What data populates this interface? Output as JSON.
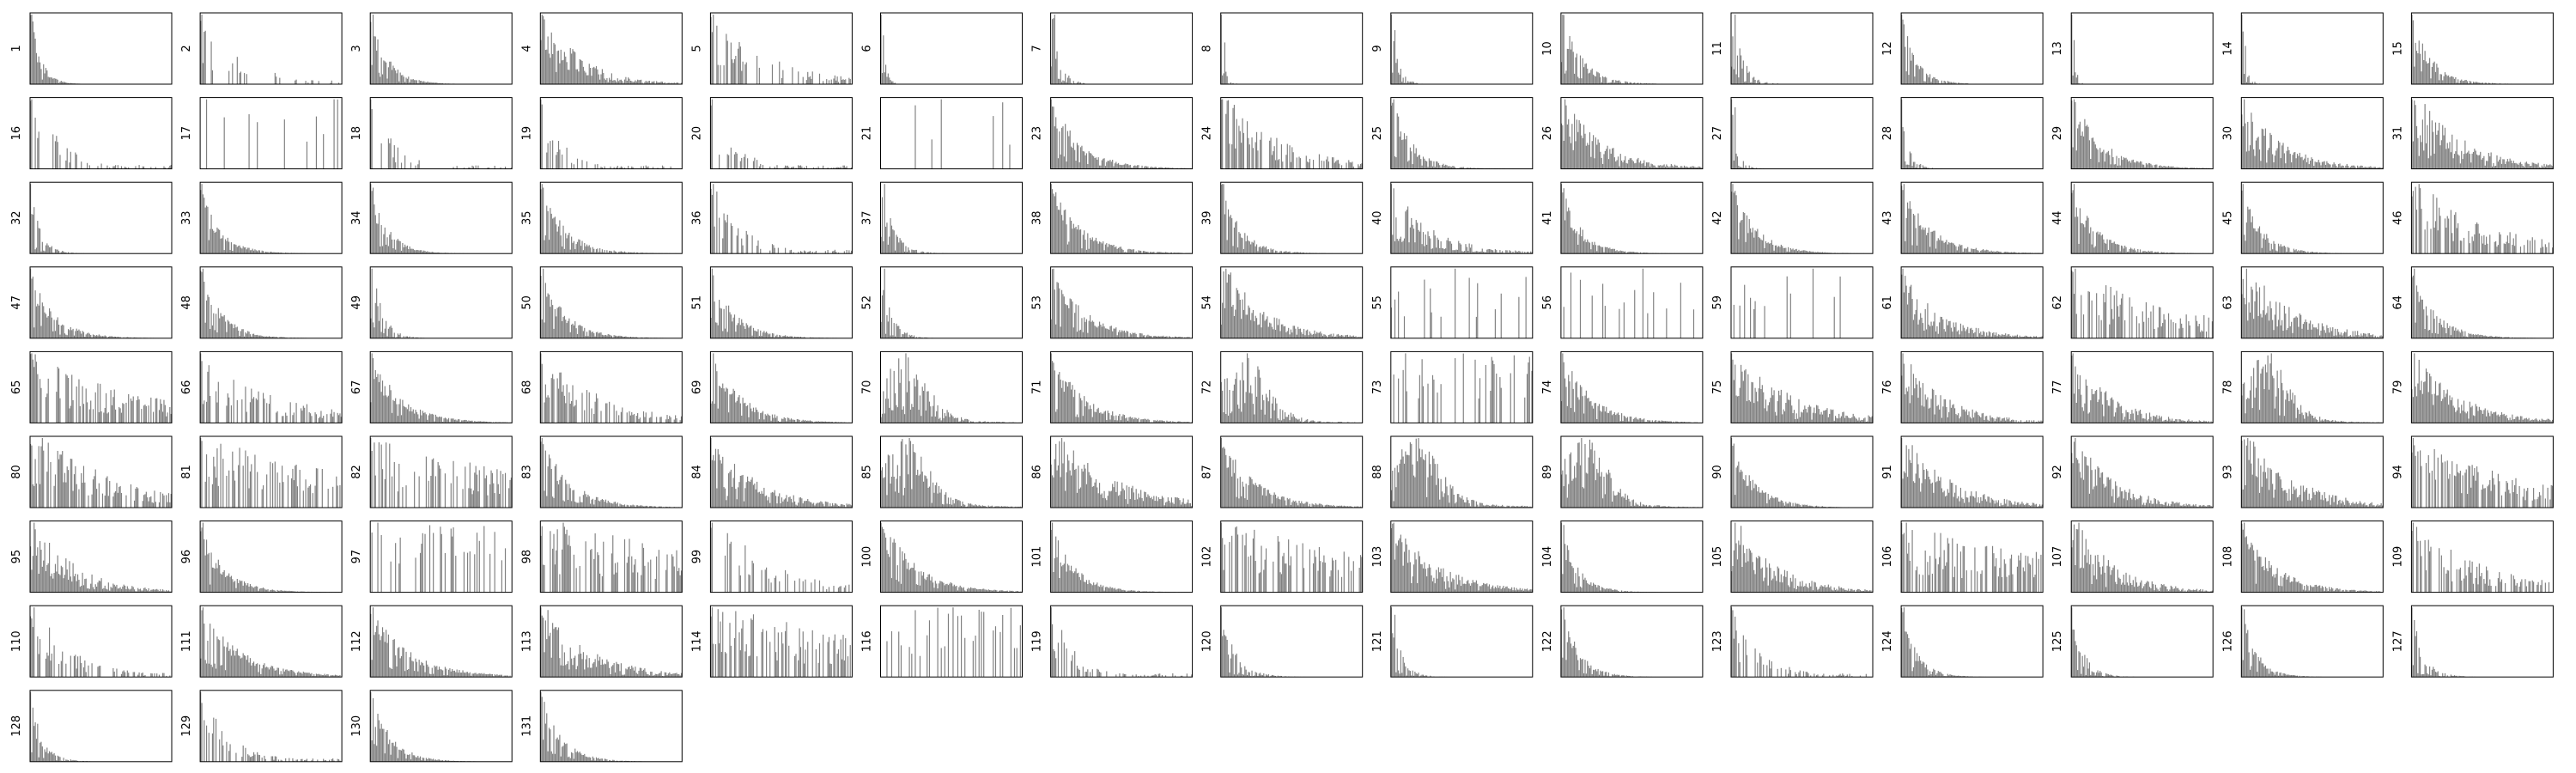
{
  "chart_data": {
    "type": "bar",
    "layout": "small-multiples-grid",
    "columns": 15,
    "bar_color": "#808080",
    "frame_color": "#000000",
    "axis_ticks": false,
    "grid": false,
    "legend": "none",
    "title": "",
    "xlabel": "",
    "ylabel": "",
    "panels": [
      {
        "label": "1",
        "shape": "decay",
        "density": 0.9,
        "decay": 0.12
      },
      {
        "label": "2",
        "shape": "sparse-spikes",
        "density": 0.25,
        "decay": 0.03
      },
      {
        "label": "3",
        "shape": "decay",
        "density": 0.85,
        "decay": 0.07
      },
      {
        "label": "4",
        "shape": "decay-broad",
        "density": 0.85,
        "decay": 0.035
      },
      {
        "label": "5",
        "shape": "sparse-spikes",
        "density": 0.45,
        "decay": 0.02
      },
      {
        "label": "6",
        "shape": "spike-decay",
        "density": 0.6,
        "decay": 0.3
      },
      {
        "label": "7",
        "shape": "spike-decay",
        "density": 0.6,
        "decay": 0.15
      },
      {
        "label": "8",
        "shape": "spike-decay",
        "density": 0.6,
        "decay": 0.35
      },
      {
        "label": "9",
        "shape": "spike-decay",
        "density": 0.7,
        "decay": 0.18
      },
      {
        "label": "10",
        "shape": "decay",
        "density": 0.85,
        "decay": 0.06
      },
      {
        "label": "11",
        "shape": "spike-decay",
        "density": 0.6,
        "decay": 0.12
      },
      {
        "label": "12",
        "shape": "decay",
        "density": 0.8,
        "decay": 0.08
      },
      {
        "label": "13",
        "shape": "spike-decay",
        "density": 0.4,
        "decay": 0.4
      },
      {
        "label": "14",
        "shape": "spike-decay",
        "density": 0.5,
        "decay": 0.3
      },
      {
        "label": "15",
        "shape": "decay",
        "density": 0.85,
        "decay": 0.06
      },
      {
        "label": "16",
        "shape": "sparse-spikes",
        "density": 0.35,
        "decay": 0.04
      },
      {
        "label": "17",
        "shape": "sparse-tall",
        "density": 0.06,
        "decay": 0.0
      },
      {
        "label": "18",
        "shape": "sparse-spikes",
        "density": 0.3,
        "decay": 0.05
      },
      {
        "label": "19",
        "shape": "sparse-spikes",
        "density": 0.3,
        "decay": 0.05
      },
      {
        "label": "20",
        "shape": "sparse-spikes",
        "density": 0.45,
        "decay": 0.05
      },
      {
        "label": "21",
        "shape": "sparse-tall",
        "density": 0.04,
        "decay": 0.0
      },
      {
        "label": "23",
        "shape": "decay",
        "density": 0.8,
        "decay": 0.04
      },
      {
        "label": "24",
        "shape": "sparse-spikes",
        "density": 0.6,
        "decay": 0.02
      },
      {
        "label": "25",
        "shape": "decay",
        "density": 0.8,
        "decay": 0.06
      },
      {
        "label": "26",
        "shape": "decay-broad",
        "density": 0.9,
        "decay": 0.03
      },
      {
        "label": "27",
        "shape": "spike-decay",
        "density": 0.6,
        "decay": 0.2
      },
      {
        "label": "28",
        "shape": "spike-decay",
        "density": 0.65,
        "decay": 0.16
      },
      {
        "label": "29",
        "shape": "decay",
        "density": 0.85,
        "decay": 0.04
      },
      {
        "label": "30",
        "shape": "decay-broad",
        "density": 0.85,
        "decay": 0.03
      },
      {
        "label": "31",
        "shape": "decay-broad",
        "density": 0.85,
        "decay": 0.025
      },
      {
        "label": "32",
        "shape": "spike-decay",
        "density": 0.7,
        "decay": 0.12
      },
      {
        "label": "33",
        "shape": "decay",
        "density": 0.85,
        "decay": 0.06
      },
      {
        "label": "34",
        "shape": "decay",
        "density": 0.85,
        "decay": 0.07
      },
      {
        "label": "35",
        "shape": "decay",
        "density": 0.85,
        "decay": 0.05
      },
      {
        "label": "36",
        "shape": "sparse-spikes",
        "density": 0.45,
        "decay": 0.04
      },
      {
        "label": "37",
        "shape": "spike-decay",
        "density": 0.7,
        "decay": 0.1
      },
      {
        "label": "38",
        "shape": "decay",
        "density": 0.85,
        "decay": 0.04
      },
      {
        "label": "39",
        "shape": "decay",
        "density": 0.85,
        "decay": 0.06
      },
      {
        "label": "40",
        "shape": "decay",
        "density": 0.6,
        "decay": 0.03
      },
      {
        "label": "41",
        "shape": "decay",
        "density": 0.85,
        "decay": 0.06
      },
      {
        "label": "42",
        "shape": "decay",
        "density": 0.85,
        "decay": 0.05
      },
      {
        "label": "43",
        "shape": "decay",
        "density": 0.85,
        "decay": 0.04
      },
      {
        "label": "44",
        "shape": "decay",
        "density": 0.85,
        "decay": 0.05
      },
      {
        "label": "45",
        "shape": "decay",
        "density": 0.85,
        "decay": 0.06
      },
      {
        "label": "46",
        "shape": "sparse-spikes",
        "density": 0.6,
        "decay": 0.015
      },
      {
        "label": "47",
        "shape": "decay",
        "density": 0.85,
        "decay": 0.05
      },
      {
        "label": "48",
        "shape": "decay",
        "density": 0.85,
        "decay": 0.06
      },
      {
        "label": "49",
        "shape": "spike-decay",
        "density": 0.7,
        "decay": 0.12
      },
      {
        "label": "50",
        "shape": "decay",
        "density": 0.85,
        "decay": 0.05
      },
      {
        "label": "51",
        "shape": "decay",
        "density": 0.85,
        "decay": 0.05
      },
      {
        "label": "52",
        "shape": "spike-decay",
        "density": 0.7,
        "decay": 0.12
      },
      {
        "label": "53",
        "shape": "decay",
        "density": 0.85,
        "decay": 0.035
      },
      {
        "label": "54",
        "shape": "decay-broad",
        "density": 0.85,
        "decay": 0.03
      },
      {
        "label": "55",
        "shape": "sparse-tall",
        "density": 0.12,
        "decay": 0.0
      },
      {
        "label": "56",
        "shape": "sparse-tall",
        "density": 0.1,
        "decay": 0.02
      },
      {
        "label": "59",
        "shape": "sparse-tall",
        "density": 0.12,
        "decay": 0.02
      },
      {
        "label": "61",
        "shape": "decay-broad",
        "density": 0.8,
        "decay": 0.03
      },
      {
        "label": "62",
        "shape": "sparse-spikes",
        "density": 0.6,
        "decay": 0.01
      },
      {
        "label": "63",
        "shape": "decay-broad",
        "density": 0.8,
        "decay": 0.025
      },
      {
        "label": "64",
        "shape": "decay",
        "density": 0.85,
        "decay": 0.05
      },
      {
        "label": "65",
        "shape": "sparse-spikes",
        "density": 0.7,
        "decay": 0.01
      },
      {
        "label": "66",
        "shape": "sparse-spikes",
        "density": 0.6,
        "decay": 0.015
      },
      {
        "label": "67",
        "shape": "decay",
        "density": 0.85,
        "decay": 0.04
      },
      {
        "label": "68",
        "shape": "sparse-spikes",
        "density": 0.6,
        "decay": 0.02
      },
      {
        "label": "69",
        "shape": "decay",
        "density": 0.85,
        "decay": 0.04
      },
      {
        "label": "70",
        "shape": "hump",
        "density": 0.75,
        "decay": 0.03
      },
      {
        "label": "71",
        "shape": "decay",
        "density": 0.85,
        "decay": 0.035
      },
      {
        "label": "72",
        "shape": "hump",
        "density": 0.7,
        "decay": 0.03
      },
      {
        "label": "73",
        "shape": "sparse-tall",
        "density": 0.25,
        "decay": 0.0
      },
      {
        "label": "74",
        "shape": "decay",
        "density": 0.85,
        "decay": 0.04
      },
      {
        "label": "75",
        "shape": "decay-broad",
        "density": 0.75,
        "decay": 0.02
      },
      {
        "label": "76",
        "shape": "decay-broad",
        "density": 0.8,
        "decay": 0.03
      },
      {
        "label": "77",
        "shape": "decay-broad",
        "density": 0.8,
        "decay": 0.03
      },
      {
        "label": "78",
        "shape": "hump",
        "density": 0.9,
        "decay": 0.03
      },
      {
        "label": "79",
        "shape": "decay-broad",
        "density": 0.9,
        "decay": 0.025
      },
      {
        "label": "80",
        "shape": "sparse-spikes",
        "density": 0.65,
        "decay": 0.015
      },
      {
        "label": "81",
        "shape": "sparse-spikes",
        "density": 0.5,
        "decay": 0.005
      },
      {
        "label": "82",
        "shape": "sparse-spikes",
        "density": 0.5,
        "decay": 0.005
      },
      {
        "label": "83",
        "shape": "decay",
        "density": 0.8,
        "decay": 0.04
      },
      {
        "label": "84",
        "shape": "decay-broad",
        "density": 0.85,
        "decay": 0.025
      },
      {
        "label": "85",
        "shape": "hump",
        "density": 0.85,
        "decay": 0.025
      },
      {
        "label": "86",
        "shape": "decay-broad",
        "density": 0.9,
        "decay": 0.02
      },
      {
        "label": "87",
        "shape": "decay",
        "density": 0.85,
        "decay": 0.035
      },
      {
        "label": "88",
        "shape": "hump",
        "density": 0.9,
        "decay": 0.02
      },
      {
        "label": "89",
        "shape": "hump",
        "density": 0.85,
        "decay": 0.03
      },
      {
        "label": "90",
        "shape": "decay",
        "density": 0.9,
        "decay": 0.05
      },
      {
        "label": "91",
        "shape": "decay-broad",
        "density": 0.9,
        "decay": 0.025
      },
      {
        "label": "92",
        "shape": "decay-broad",
        "density": 0.85,
        "decay": 0.03
      },
      {
        "label": "93",
        "shape": "decay-broad",
        "density": 0.85,
        "decay": 0.025
      },
      {
        "label": "94",
        "shape": "sparse-spikes",
        "density": 0.7,
        "decay": 0.01
      },
      {
        "label": "95",
        "shape": "decay-broad",
        "density": 0.8,
        "decay": 0.03
      },
      {
        "label": "96",
        "shape": "decay",
        "density": 0.9,
        "decay": 0.05
      },
      {
        "label": "97",
        "shape": "sparse-tall",
        "density": 0.3,
        "decay": 0.0
      },
      {
        "label": "98",
        "shape": "sparse-spikes",
        "density": 0.45,
        "decay": 0.005
      },
      {
        "label": "99",
        "shape": "sparse-spikes",
        "density": 0.35,
        "decay": 0.02
      },
      {
        "label": "100",
        "shape": "decay",
        "density": 0.85,
        "decay": 0.035
      },
      {
        "label": "101",
        "shape": "decay",
        "density": 0.9,
        "decay": 0.05
      },
      {
        "label": "102",
        "shape": "sparse-spikes",
        "density": 0.5,
        "decay": 0.005
      },
      {
        "label": "103",
        "shape": "decay-broad",
        "density": 0.9,
        "decay": 0.025
      },
      {
        "label": "104",
        "shape": "decay",
        "density": 0.85,
        "decay": 0.07
      },
      {
        "label": "105",
        "shape": "decay-broad",
        "density": 0.8,
        "decay": 0.03
      },
      {
        "label": "106",
        "shape": "sparse-spikes",
        "density": 0.55,
        "decay": 0.005
      },
      {
        "label": "107",
        "shape": "decay-broad",
        "density": 0.85,
        "decay": 0.03
      },
      {
        "label": "108",
        "shape": "decay",
        "density": 0.85,
        "decay": 0.035
      },
      {
        "label": "109",
        "shape": "sparse-spikes",
        "density": 0.6,
        "decay": 0.015
      },
      {
        "label": "110",
        "shape": "sparse-spikes",
        "density": 0.45,
        "decay": 0.03
      },
      {
        "label": "111",
        "shape": "decay",
        "density": 0.85,
        "decay": 0.03
      },
      {
        "label": "112",
        "shape": "decay",
        "density": 0.85,
        "decay": 0.03
      },
      {
        "label": "113",
        "shape": "decay-broad",
        "density": 0.75,
        "decay": 0.025
      },
      {
        "label": "114",
        "shape": "sparse-spikes",
        "density": 0.55,
        "decay": 0.005
      },
      {
        "label": "116",
        "shape": "sparse-tall",
        "density": 0.2,
        "decay": 0.0
      },
      {
        "label": "119",
        "shape": "sparse-spikes",
        "density": 0.4,
        "decay": 0.05
      },
      {
        "label": "120",
        "shape": "spike-decay",
        "density": 0.7,
        "decay": 0.08
      },
      {
        "label": "121",
        "shape": "spike-decay",
        "density": 0.6,
        "decay": 0.12
      },
      {
        "label": "122",
        "shape": "decay",
        "density": 0.8,
        "decay": 0.07
      },
      {
        "label": "123",
        "shape": "sparse-spikes",
        "density": 0.5,
        "decay": 0.04
      },
      {
        "label": "124",
        "shape": "decay",
        "density": 0.8,
        "decay": 0.08
      },
      {
        "label": "125",
        "shape": "spike-decay",
        "density": 0.65,
        "decay": 0.1
      },
      {
        "label": "126",
        "shape": "decay",
        "density": 0.8,
        "decay": 0.08
      },
      {
        "label": "127",
        "shape": "spike-decay",
        "density": 0.65,
        "decay": 0.1
      },
      {
        "label": "128",
        "shape": "spike-decay",
        "density": 0.7,
        "decay": 0.1
      },
      {
        "label": "129",
        "shape": "sparse-spikes",
        "density": 0.5,
        "decay": 0.04
      },
      {
        "label": "130",
        "shape": "decay",
        "density": 0.85,
        "decay": 0.06
      },
      {
        "label": "131",
        "shape": "decay",
        "density": 0.8,
        "decay": 0.06
      }
    ]
  }
}
